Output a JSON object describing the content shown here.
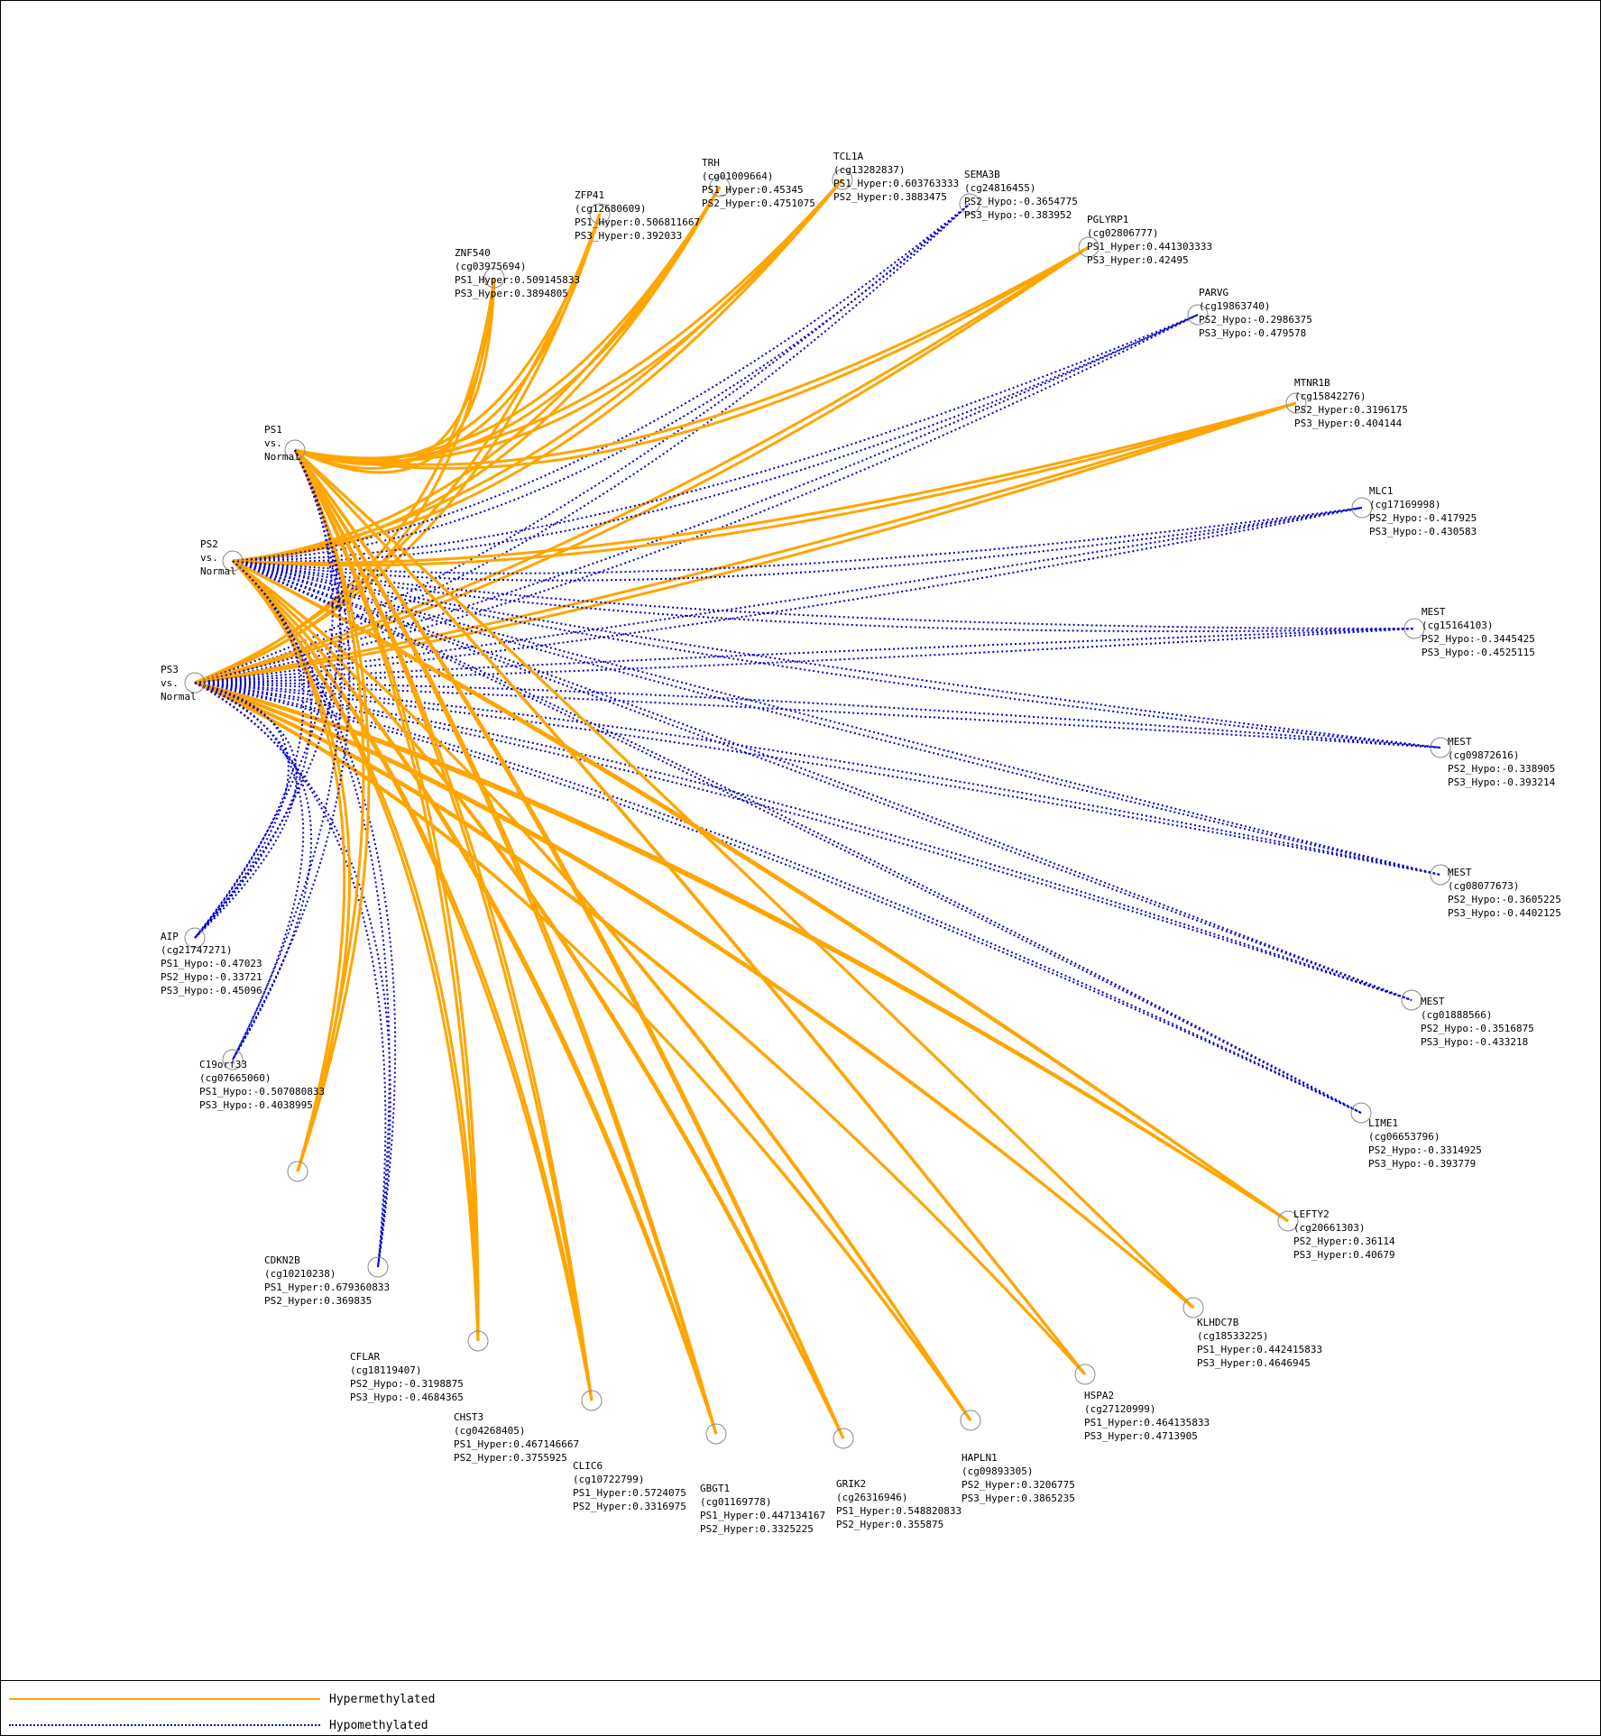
{
  "colors": {
    "hyper": "#FFA500",
    "hypo": "#0000CC"
  },
  "legend": {
    "hyper": "Hypermethylated",
    "hypo": "Hypomethylated"
  },
  "comparisons": [
    {
      "id": "PS1",
      "lines": [
        "PS1",
        "vs.",
        "Normal"
      ]
    },
    {
      "id": "PS2",
      "lines": [
        "PS2",
        "vs.",
        "Normal"
      ]
    },
    {
      "id": "PS3",
      "lines": [
        "PS3",
        "vs.",
        "Normal"
      ]
    }
  ],
  "genes": [
    {
      "gene": "ZNF540",
      "probe": "(cg03975694)",
      "values": [
        {
          "set": "PS1",
          "type": "Hyper",
          "text": "PS1_Hyper:0.509145833"
        },
        {
          "set": "PS3",
          "type": "Hyper",
          "text": "PS3_Hyper:0.3894805"
        }
      ]
    },
    {
      "gene": "ZFP41",
      "probe": "(cg12680609)",
      "values": [
        {
          "set": "PS1",
          "type": "Hyper",
          "text": "PS1_Hyper:0.506811667"
        },
        {
          "set": "PS3",
          "type": "Hyper",
          "text": "PS3_Hyper:0.392033"
        }
      ]
    },
    {
      "gene": "TRH",
      "probe": "(cg01009664)",
      "values": [
        {
          "set": "PS1",
          "type": "Hyper",
          "text": "PS1_Hyper:0.45345"
        },
        {
          "set": "PS2",
          "type": "Hyper",
          "text": "PS2_Hyper:0.4751075"
        }
      ]
    },
    {
      "gene": "TCL1A",
      "probe": "(cg13282837)",
      "values": [
        {
          "set": "PS1",
          "type": "Hyper",
          "text": "PS1_Hyper:0.603763333"
        },
        {
          "set": "PS2",
          "type": "Hyper",
          "text": "PS2_Hyper:0.3883475"
        }
      ]
    },
    {
      "gene": "SEMA3B",
      "probe": "(cg24816455)",
      "values": [
        {
          "set": "PS2",
          "type": "Hypo",
          "text": "PS2_Hypo:-0.3654775"
        },
        {
          "set": "PS3",
          "type": "Hypo",
          "text": "PS3_Hypo:-0.383952"
        }
      ]
    },
    {
      "gene": "PGLYRP1",
      "probe": "(cg02806777)",
      "values": [
        {
          "set": "PS1",
          "type": "Hyper",
          "text": "PS1_Hyper:0.441303333"
        },
        {
          "set": "PS3",
          "type": "Hyper",
          "text": "PS3_Hyper:0.42495"
        }
      ]
    },
    {
      "gene": "PARVG",
      "probe": "(cg19863740)",
      "values": [
        {
          "set": "PS2",
          "type": "Hypo",
          "text": "PS2_Hypo:-0.2986375"
        },
        {
          "set": "PS3",
          "type": "Hypo",
          "text": "PS3_Hypo:-0.479578"
        }
      ]
    },
    {
      "gene": "MTNR1B",
      "probe": "(cg15842276)",
      "values": [
        {
          "set": "PS2",
          "type": "Hyper",
          "text": "PS2_Hyper:0.3196175"
        },
        {
          "set": "PS3",
          "type": "Hyper",
          "text": "PS3_Hyper:0.404144"
        }
      ]
    },
    {
      "gene": "MLC1",
      "probe": "(cg17169998)",
      "values": [
        {
          "set": "PS2",
          "type": "Hypo",
          "text": "PS2_Hypo:-0.417925"
        },
        {
          "set": "PS3",
          "type": "Hypo",
          "text": "PS3_Hypo:-0.430583"
        }
      ]
    },
    {
      "gene": "MEST",
      "probe": "(cg15164103)",
      "values": [
        {
          "set": "PS2",
          "type": "Hypo",
          "text": "PS2_Hypo:-0.3445425"
        },
        {
          "set": "PS3",
          "type": "Hypo",
          "text": "PS3_Hypo:-0.4525115"
        }
      ]
    },
    {
      "gene": "MEST",
      "probe": "(cg09872616)",
      "values": [
        {
          "set": "PS2",
          "type": "Hypo",
          "text": "PS2_Hypo:-0.338905"
        },
        {
          "set": "PS3",
          "type": "Hypo",
          "text": "PS3_Hypo:-0.393214"
        }
      ]
    },
    {
      "gene": "MEST",
      "probe": "(cg08077673)",
      "values": [
        {
          "set": "PS2",
          "type": "Hypo",
          "text": "PS2_Hypo:-0.3605225"
        },
        {
          "set": "PS3",
          "type": "Hypo",
          "text": "PS3_Hypo:-0.4402125"
        }
      ]
    },
    {
      "gene": "MEST",
      "probe": "(cg01888566)",
      "values": [
        {
          "set": "PS2",
          "type": "Hypo",
          "text": "PS2_Hypo:-0.3516875"
        },
        {
          "set": "PS3",
          "type": "Hypo",
          "text": "PS3_Hypo:-0.433218"
        }
      ]
    },
    {
      "gene": "LIME1",
      "probe": "(cg06653796)",
      "values": [
        {
          "set": "PS2",
          "type": "Hypo",
          "text": "PS2_Hypo:-0.3314925"
        },
        {
          "set": "PS3",
          "type": "Hypo",
          "text": "PS3_Hypo:-0.393779"
        }
      ]
    },
    {
      "gene": "LEFTY2",
      "probe": "(cg20661303)",
      "values": [
        {
          "set": "PS2",
          "type": "Hyper",
          "text": "PS2_Hyper:0.36114"
        },
        {
          "set": "PS3",
          "type": "Hyper",
          "text": "PS3_Hyper:0.40679"
        }
      ]
    },
    {
      "gene": "KLHDC7B",
      "probe": "(cg18533225)",
      "values": [
        {
          "set": "PS1",
          "type": "Hyper",
          "text": "PS1_Hyper:0.442415833"
        },
        {
          "set": "PS3",
          "type": "Hyper",
          "text": "PS3_Hyper:0.4646945"
        }
      ]
    },
    {
      "gene": "HSPA2",
      "probe": "(cg27120999)",
      "values": [
        {
          "set": "PS1",
          "type": "Hyper",
          "text": "PS1_Hyper:0.464135833"
        },
        {
          "set": "PS3",
          "type": "Hyper",
          "text": "PS3_Hyper:0.4713905"
        }
      ]
    },
    {
      "gene": "HAPLN1",
      "probe": "(cg09893305)",
      "values": [
        {
          "set": "PS2",
          "type": "Hyper",
          "text": "PS2_Hyper:0.3206775"
        },
        {
          "set": "PS3",
          "type": "Hyper",
          "text": "PS3_Hyper:0.3865235"
        }
      ]
    },
    {
      "gene": "GRIK2",
      "probe": "(cg26316946)",
      "values": [
        {
          "set": "PS1",
          "type": "Hyper",
          "text": "PS1_Hyper:0.548820833"
        },
        {
          "set": "PS2",
          "type": "Hyper",
          "text": "PS2_Hyper:0.355875"
        }
      ]
    },
    {
      "gene": "GBGT1",
      "probe": "(cg01169778)",
      "values": [
        {
          "set": "PS1",
          "type": "Hyper",
          "text": "PS1_Hyper:0.447134167"
        },
        {
          "set": "PS2",
          "type": "Hyper",
          "text": "PS2_Hyper:0.3325225"
        }
      ]
    },
    {
      "gene": "CLIC6",
      "probe": "(cg10722799)",
      "values": [
        {
          "set": "PS1",
          "type": "Hyper",
          "text": "PS1_Hyper:0.5724075"
        },
        {
          "set": "PS2",
          "type": "Hyper",
          "text": "PS2_Hyper:0.3316975"
        }
      ]
    },
    {
      "gene": "CHST3",
      "probe": "(cg04268405)",
      "values": [
        {
          "set": "PS1",
          "type": "Hyper",
          "text": "PS1_Hyper:0.467146667"
        },
        {
          "set": "PS2",
          "type": "Hyper",
          "text": "PS2_Hyper:0.3755925"
        }
      ]
    },
    {
      "gene": "CFLAR",
      "probe": "(cg18119407)",
      "values": [
        {
          "set": "PS2",
          "type": "Hypo",
          "text": "PS2_Hypo:-0.3198875"
        },
        {
          "set": "PS3",
          "type": "Hypo",
          "text": "PS3_Hypo:-0.4684365"
        }
      ]
    },
    {
      "gene": "CDKN2B",
      "probe": "(cg10210238)",
      "values": [
        {
          "set": "PS1",
          "type": "Hyper",
          "text": "PS1_Hyper:0.679360833"
        },
        {
          "set": "PS2",
          "type": "Hyper",
          "text": "PS2_Hyper:0.369835"
        }
      ]
    },
    {
      "gene": "C19orf33",
      "probe": "(cg07665060)",
      "values": [
        {
          "set": "PS1",
          "type": "Hypo",
          "text": "PS1_Hypo:-0.507080833"
        },
        {
          "set": "PS3",
          "type": "Hypo",
          "text": "PS3_Hypo:-0.4038995"
        }
      ]
    },
    {
      "gene": "AIP",
      "probe": "(cg21747271)",
      "values": [
        {
          "set": "PS1",
          "type": "Hypo",
          "text": "PS1_Hypo:-0.47023"
        },
        {
          "set": "PS2",
          "type": "Hypo",
          "text": "PS2_Hypo:-0.33721"
        },
        {
          "set": "PS3",
          "type": "Hypo",
          "text": "PS3_Hypo:-0.45096"
        }
      ]
    }
  ]
}
